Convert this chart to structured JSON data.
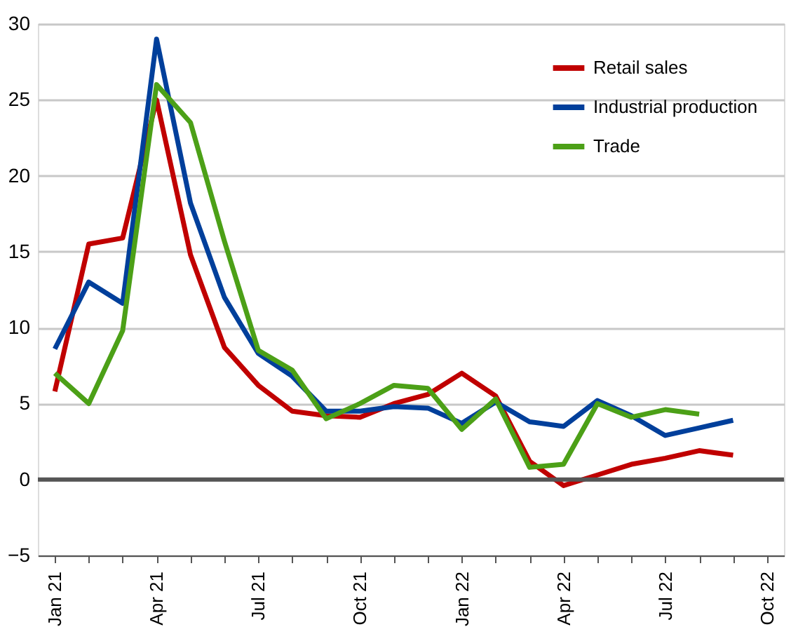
{
  "chart_data": {
    "type": "line",
    "categories": [
      "Jan 21",
      null,
      null,
      "Apr 21",
      null,
      null,
      "Jul 21",
      null,
      null,
      "Oct 21",
      null,
      null,
      "Jan 22",
      null,
      null,
      "Apr 22",
      null,
      null,
      "Jul 22",
      null,
      null,
      "Oct 22"
    ],
    "series": [
      {
        "name": "Retail sales",
        "color": "#c00000",
        "values": [
          5.8,
          15.5,
          15.9,
          25,
          14.8,
          8.7,
          6.2,
          4.5,
          4.2,
          4.1,
          5,
          5.6,
          7,
          5.5,
          1.2,
          -0.4,
          0.3,
          1.0,
          1.4,
          1.9,
          1.6,
          null
        ]
      },
      {
        "name": "Industrial production",
        "color": "#003f9b",
        "values": [
          8.6,
          13,
          11.6,
          29,
          18.2,
          12,
          8.3,
          6.8,
          4.5,
          4.5,
          4.8,
          4.7,
          3.7,
          5.1,
          3.8,
          3.5,
          5.2,
          4.2,
          2.9,
          3.4,
          3.9,
          null
        ]
      },
      {
        "name": "Trade",
        "color": "#4ca017",
        "values": [
          7,
          5,
          9.8,
          26,
          23.5,
          15.7,
          8.5,
          7.2,
          4,
          5,
          6.2,
          6,
          3.3,
          5.3,
          0.8,
          1,
          5,
          4.1,
          4.6,
          4.3,
          null,
          null
        ]
      }
    ],
    "ylim": [
      -5,
      30
    ],
    "yticks": [
      -5,
      0,
      5,
      10,
      15,
      20,
      25,
      30
    ],
    "ref_lines": [
      {
        "axis": "y",
        "value": 0,
        "color": "#555555"
      }
    ],
    "grid": "y",
    "legend": "top right",
    "marker": "none",
    "line_style": "solid"
  }
}
